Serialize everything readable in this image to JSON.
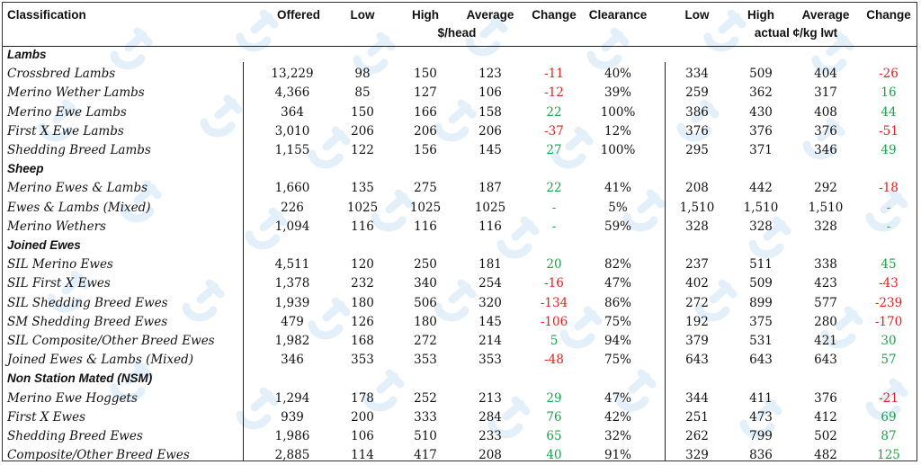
{
  "header": {
    "classification": "Classification",
    "offered": "Offered",
    "low": "Low",
    "high": "High",
    "average": "Average",
    "change": "Change",
    "clearance": "Clearance",
    "unit_head": "$/head",
    "low2": "Low",
    "high2": "High",
    "average2": "Average",
    "change2": "Change",
    "unit_kg": "actual ¢/kg lwt"
  },
  "watermark_icon": "logo-watermark-icon",
  "rows": [
    {
      "type": "section",
      "label": "Lambs"
    },
    {
      "type": "data",
      "label": "Crossbred Lambs",
      "offered": "13,229",
      "low": "98",
      "high": "150",
      "avg": "123",
      "change": "-11",
      "clearance": "40%",
      "low2": "334",
      "high2": "509",
      "avg2": "404",
      "change2": "-26"
    },
    {
      "type": "data",
      "label": "Merino Wether Lambs",
      "offered": "4,366",
      "low": "85",
      "high": "127",
      "avg": "106",
      "change": "-12",
      "clearance": "39%",
      "low2": "259",
      "high2": "362",
      "avg2": "317",
      "change2": "16"
    },
    {
      "type": "data",
      "label": "Merino Ewe Lambs",
      "offered": "364",
      "low": "150",
      "high": "166",
      "avg": "158",
      "change": "22",
      "clearance": "100%",
      "low2": "386",
      "high2": "430",
      "avg2": "408",
      "change2": "44"
    },
    {
      "type": "data",
      "label": "First X Ewe Lambs",
      "offered": "3,010",
      "low": "206",
      "high": "206",
      "avg": "206",
      "change": "-37",
      "clearance": "12%",
      "low2": "376",
      "high2": "376",
      "avg2": "376",
      "change2": "-51"
    },
    {
      "type": "data",
      "label": "Shedding Breed Lambs",
      "offered": "1,155",
      "low": "122",
      "high": "156",
      "avg": "145",
      "change": "27",
      "clearance": "100%",
      "low2": "295",
      "high2": "371",
      "avg2": "346",
      "change2": "49"
    },
    {
      "type": "section",
      "label": "Sheep"
    },
    {
      "type": "data",
      "label": "Merino Ewes & Lambs",
      "offered": "1,660",
      "low": "135",
      "high": "275",
      "avg": "187",
      "change": "22",
      "clearance": "41%",
      "low2": "208",
      "high2": "442",
      "avg2": "292",
      "change2": "-18"
    },
    {
      "type": "data",
      "label": "Ewes & Lambs (Mixed)",
      "offered": "226",
      "low": "1025",
      "high": "1025",
      "avg": "1025",
      "change": "-",
      "clearance": "5%",
      "low2": "1,510",
      "high2": "1,510",
      "avg2": "1,510",
      "change2": "-"
    },
    {
      "type": "data",
      "label": "Merino Wethers",
      "offered": "1,094",
      "low": "116",
      "high": "116",
      "avg": "116",
      "change": "-",
      "clearance": "59%",
      "low2": "328",
      "high2": "328",
      "avg2": "328",
      "change2": "-"
    },
    {
      "type": "section",
      "label": "Joined Ewes"
    },
    {
      "type": "data",
      "label": "SIL Merino Ewes",
      "offered": "4,511",
      "low": "120",
      "high": "250",
      "avg": "181",
      "change": "20",
      "clearance": "82%",
      "low2": "237",
      "high2": "511",
      "avg2": "338",
      "change2": "45"
    },
    {
      "type": "data",
      "label": "SIL First X Ewes",
      "offered": "1,378",
      "low": "232",
      "high": "340",
      "avg": "254",
      "change": "-16",
      "clearance": "47%",
      "low2": "402",
      "high2": "509",
      "avg2": "423",
      "change2": "-43"
    },
    {
      "type": "data",
      "label": "SIL Shedding Breed Ewes",
      "offered": "1,939",
      "low": "180",
      "high": "506",
      "avg": "320",
      "change": "-134",
      "clearance": "86%",
      "low2": "272",
      "high2": "899",
      "avg2": "577",
      "change2": "-239"
    },
    {
      "type": "data",
      "label": "SM Shedding Breed Ewes",
      "offered": "479",
      "low": "126",
      "high": "180",
      "avg": "145",
      "change": "-106",
      "clearance": "75%",
      "low2": "192",
      "high2": "375",
      "avg2": "280",
      "change2": "-170"
    },
    {
      "type": "data",
      "label": "SIL Composite/Other Breed Ewes",
      "offered": "1,982",
      "low": "168",
      "high": "272",
      "avg": "214",
      "change": "5",
      "clearance": "94%",
      "low2": "379",
      "high2": "531",
      "avg2": "421",
      "change2": "30"
    },
    {
      "type": "data",
      "label": "Joined Ewes & Lambs (Mixed)",
      "offered": "346",
      "low": "353",
      "high": "353",
      "avg": "353",
      "change": "-48",
      "clearance": "75%",
      "low2": "643",
      "high2": "643",
      "avg2": "643",
      "change2": "57"
    },
    {
      "type": "section",
      "label": "Non Station Mated (NSM)"
    },
    {
      "type": "data",
      "label": "Merino Ewe Hoggets",
      "offered": "1,294",
      "low": "178",
      "high": "252",
      "avg": "213",
      "change": "29",
      "clearance": "47%",
      "low2": "344",
      "high2": "411",
      "avg2": "376",
      "change2": "-21"
    },
    {
      "type": "data",
      "label": "First X Ewes",
      "offered": "939",
      "low": "200",
      "high": "333",
      "avg": "284",
      "change": "76",
      "clearance": "42%",
      "low2": "251",
      "high2": "473",
      "avg2": "412",
      "change2": "69"
    },
    {
      "type": "data",
      "label": "Shedding Breed Ewes",
      "offered": "1,986",
      "low": "106",
      "high": "510",
      "avg": "233",
      "change": "65",
      "clearance": "32%",
      "low2": "262",
      "high2": "799",
      "avg2": "502",
      "change2": "87"
    },
    {
      "type": "data",
      "label": "Composite/Other Breed Ewes",
      "offered": "2,885",
      "low": "114",
      "high": "417",
      "avg": "208",
      "change": "40",
      "clearance": "91%",
      "low2": "329",
      "high2": "836",
      "avg2": "482",
      "change2": "125"
    }
  ],
  "colors": {
    "negative": "#e02020",
    "positive": "#1aa34a",
    "watermark": "#9cc9ea"
  }
}
